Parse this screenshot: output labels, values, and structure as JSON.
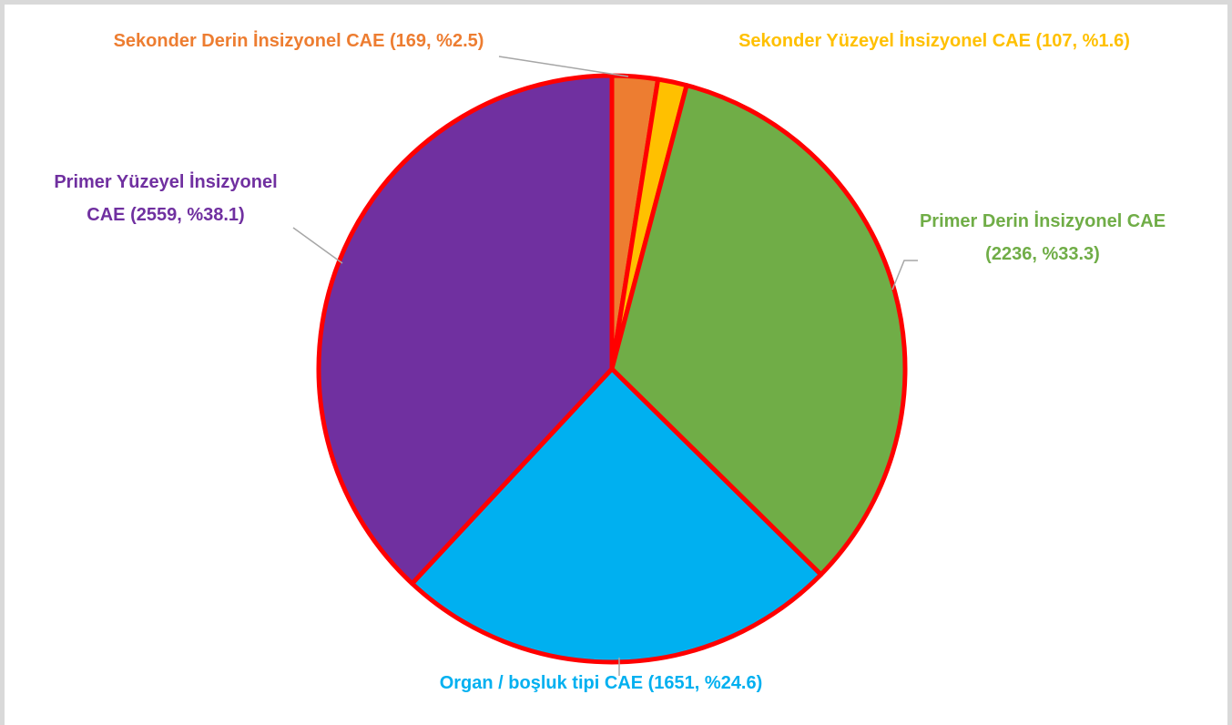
{
  "chart_data": {
    "type": "pie",
    "categories": [
      "Sekonder Derin İnsizyonel CAE",
      "Sekonder Yüzeyel İnsizyonel CAE",
      "Primer Derin İnsizyonel CAE",
      "Organ / boşluk tipi CAE",
      "Primer Yüzeyel İnsizyonel CAE"
    ],
    "values": [
      169,
      107,
      2236,
      1651,
      2559
    ],
    "value_labels": [
      "(169, %2.5)",
      "(107, %1.6)",
      "(2236, %33.3)",
      "(1651, %24.6)",
      "(2559, %38.1)"
    ],
    "colors": [
      "#ed7d31",
      "#ffc000",
      "#70ad47",
      "#00b0f0",
      "#7030a0"
    ],
    "edge_color": "#ff0000"
  }
}
